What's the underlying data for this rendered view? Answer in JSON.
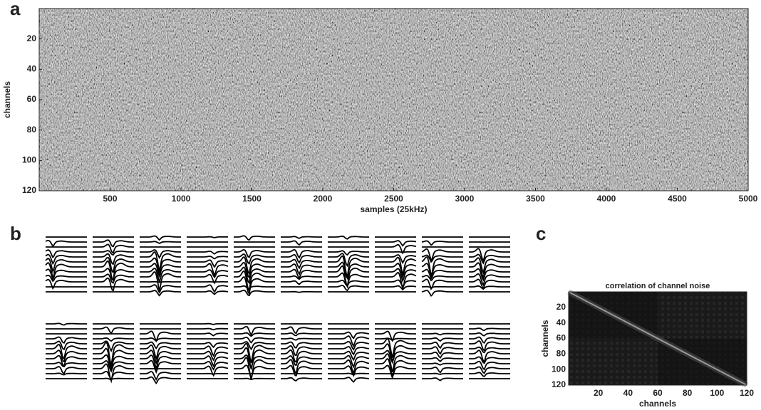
{
  "chart_data": [
    {
      "type": "heatmap",
      "panel": "a",
      "xlabel": "samples (25kHz)",
      "ylabel": "channels",
      "xlim": [
        0,
        5000
      ],
      "xticks": [
        500,
        1000,
        1500,
        2000,
        2500,
        3000,
        3500,
        4000,
        4500,
        5000
      ],
      "ylim": [
        0,
        120
      ],
      "yticks": [
        20,
        40,
        60,
        80,
        100,
        120
      ],
      "y_reversed": true,
      "texture": "noise"
    },
    {
      "type": "waveforms",
      "panel": "b",
      "color": "#000000"
    },
    {
      "type": "heatmap",
      "panel": "c",
      "title": "correlation of channel noise",
      "xlabel": "channels",
      "ylabel": "channels",
      "xlim": [
        0,
        120
      ],
      "xticks": [
        20,
        40,
        60,
        80,
        100,
        120
      ],
      "ylim": [
        0,
        120
      ],
      "yticks": [
        20,
        40,
        60,
        80,
        100,
        120
      ],
      "y_reversed": true,
      "texture": "correlation"
    }
  ]
}
